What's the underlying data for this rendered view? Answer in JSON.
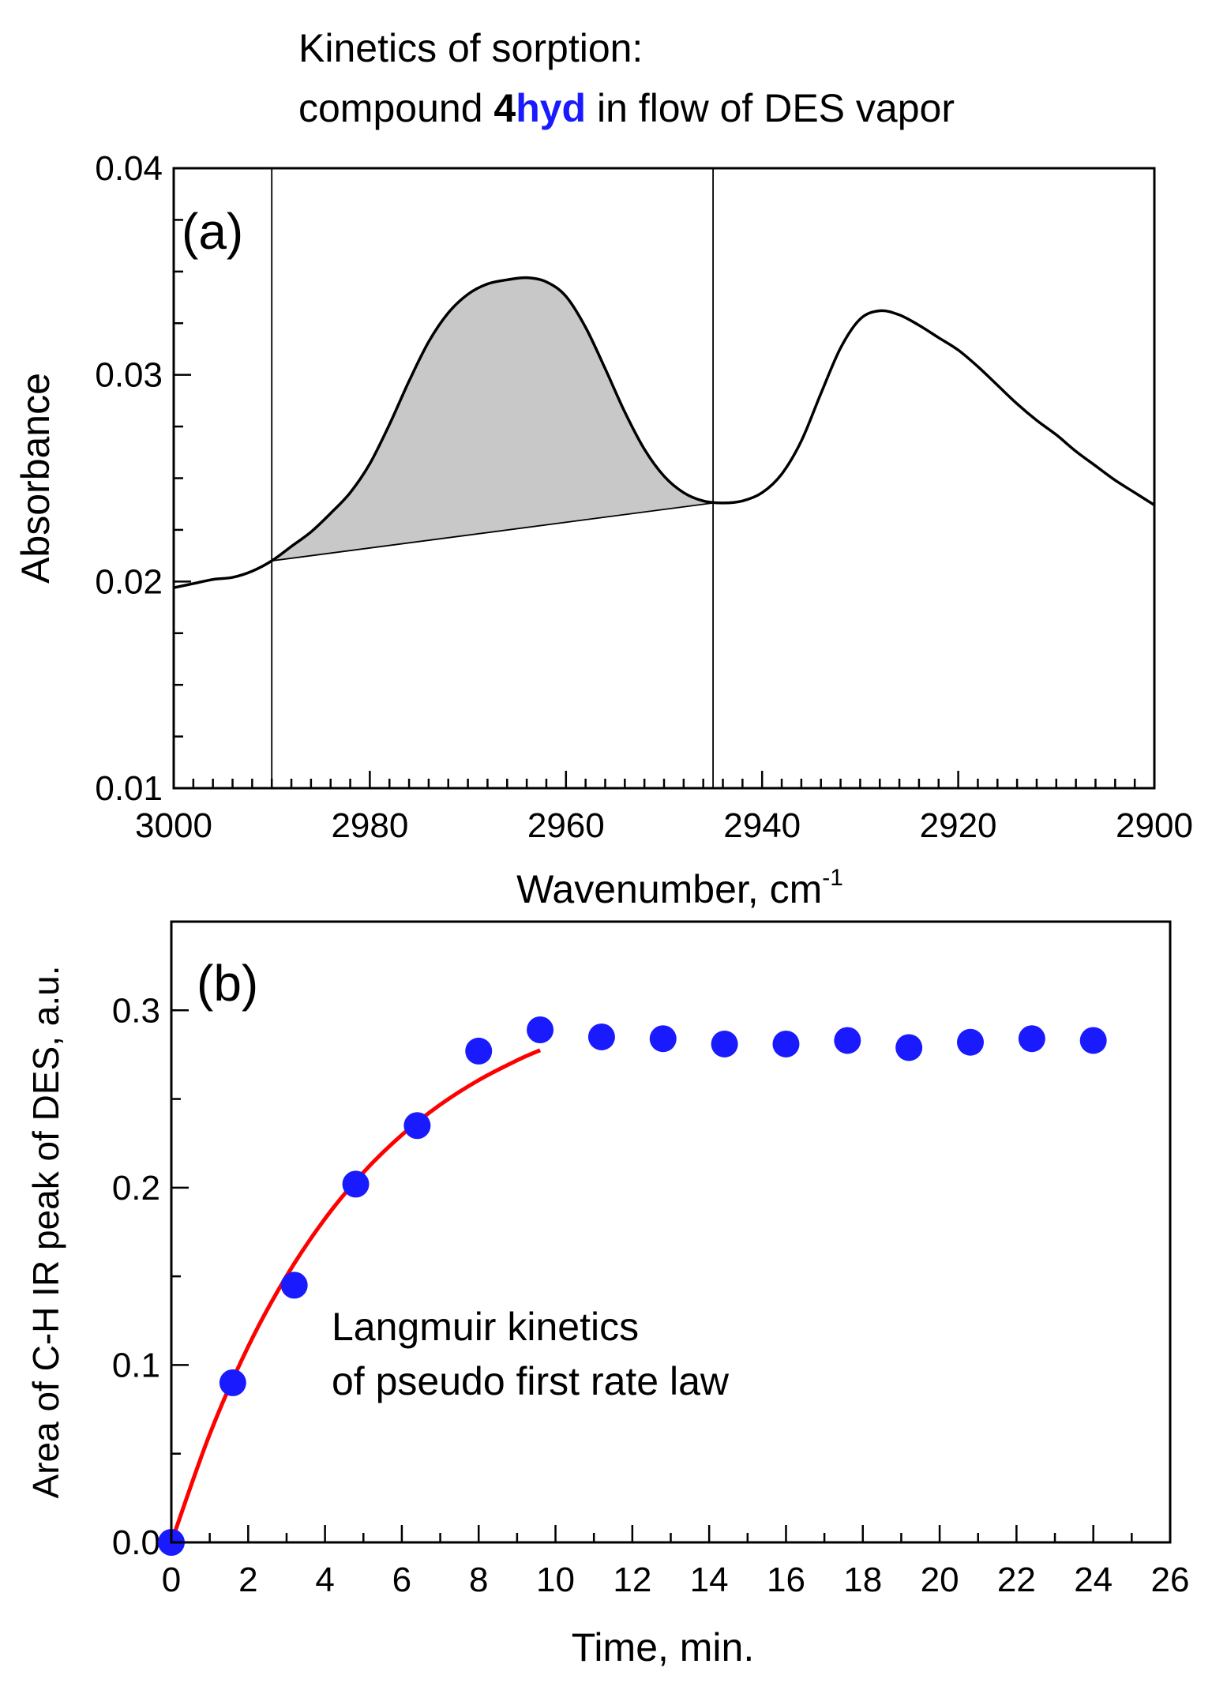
{
  "title": {
    "line1": "Kinetics of sorption:",
    "line2_prefix": "compound ",
    "line2_bold": "4",
    "line2_blue": "hyd",
    "line2_suffix": " in flow of DES vapor",
    "blue_color": "#1a1aff"
  },
  "chart_data": [
    {
      "type": "line",
      "panel_label": "(a)",
      "xlabel": "Wavenumber, cm",
      "xlabel_sup": "-1",
      "ylabel": "Absorbance",
      "xlim": [
        3000,
        2900
      ],
      "ylim": [
        0.01,
        0.04
      ],
      "x_ticks": [
        3000,
        2980,
        2960,
        2940,
        2920,
        2900
      ],
      "x_tick_labels": [
        "3000",
        "2980",
        "2960",
        "2940",
        "2920",
        "2900"
      ],
      "y_ticks": [
        0.01,
        0.02,
        0.03,
        0.04
      ],
      "y_tick_labels": [
        "0.01",
        "0.02",
        "0.03",
        "0.04"
      ],
      "grid": false,
      "vertical_markers": [
        2990,
        2945
      ],
      "baseline": {
        "x": [
          2990,
          2945
        ],
        "y": [
          0.021,
          0.0238
        ]
      },
      "shaded_region": {
        "x_from": 2990,
        "x_to": 2945,
        "color": "#c8c8c8"
      },
      "line_color": "#000000",
      "spectrum": {
        "x": [
          3000,
          2998,
          2996,
          2994,
          2992,
          2990,
          2988,
          2986,
          2984,
          2982,
          2980,
          2978,
          2976,
          2974,
          2972,
          2970,
          2968,
          2966,
          2964,
          2962,
          2960,
          2958,
          2956,
          2954,
          2952,
          2950,
          2948,
          2946,
          2944,
          2942,
          2940,
          2938,
          2936,
          2934,
          2932,
          2930,
          2928,
          2926,
          2924,
          2922,
          2920,
          2918,
          2916,
          2914,
          2912,
          2910,
          2908,
          2906,
          2904,
          2902,
          2900
        ],
        "y": [
          0.0197,
          0.0199,
          0.0201,
          0.0202,
          0.0205,
          0.021,
          0.0217,
          0.0224,
          0.0233,
          0.0243,
          0.0257,
          0.0276,
          0.0297,
          0.0316,
          0.033,
          0.0339,
          0.0344,
          0.0346,
          0.0347,
          0.0345,
          0.0338,
          0.0323,
          0.0303,
          0.0282,
          0.0264,
          0.0251,
          0.0243,
          0.0239,
          0.0238,
          0.0239,
          0.0243,
          0.0252,
          0.0268,
          0.0291,
          0.0313,
          0.0327,
          0.0331,
          0.0329,
          0.0324,
          0.0318,
          0.0312,
          0.0304,
          0.0295,
          0.0286,
          0.0278,
          0.0271,
          0.0263,
          0.0256,
          0.0249,
          0.0243,
          0.0237
        ]
      }
    },
    {
      "type": "scatter",
      "panel_label": "(b)",
      "xlabel": "Time, min.",
      "ylabel": "Area of C-H IR peak of DES, a.u.",
      "xlim": [
        0,
        26
      ],
      "ylim": [
        0,
        0.35
      ],
      "x_ticks": [
        0,
        2,
        4,
        6,
        8,
        10,
        12,
        14,
        16,
        18,
        20,
        22,
        24,
        26
      ],
      "x_tick_labels": [
        "0",
        "2",
        "4",
        "6",
        "8",
        "10",
        "12",
        "14",
        "16",
        "18",
        "20",
        "22",
        "24",
        "26"
      ],
      "y_ticks": [
        0.0,
        0.1,
        0.2,
        0.3
      ],
      "y_tick_labels": [
        "0.0",
        "0.1",
        "0.2",
        "0.3"
      ],
      "grid": false,
      "annotation": {
        "line1": "Langmuir kinetics",
        "line2": "of pseudo first rate law"
      },
      "points": {
        "color": "#1a1aff",
        "x": [
          0,
          1.6,
          3.2,
          4.8,
          6.4,
          8.0,
          9.6,
          11.2,
          12.8,
          14.4,
          16.0,
          17.6,
          19.2,
          20.8,
          22.4,
          24.0
        ],
        "y": [
          0.0,
          0.09,
          0.145,
          0.202,
          0.235,
          0.277,
          0.289,
          0.285,
          0.284,
          0.281,
          0.281,
          0.283,
          0.279,
          0.282,
          0.284,
          0.283
        ]
      },
      "fit": {
        "color": "#ff0000",
        "x": [
          0,
          1,
          2,
          3,
          4,
          5,
          6,
          7,
          8,
          9,
          9.6
        ],
        "y": [
          0.0,
          0.061,
          0.1104,
          0.1502,
          0.1825,
          0.2086,
          0.2297,
          0.2468,
          0.2606,
          0.2718,
          0.2775
        ]
      }
    }
  ]
}
